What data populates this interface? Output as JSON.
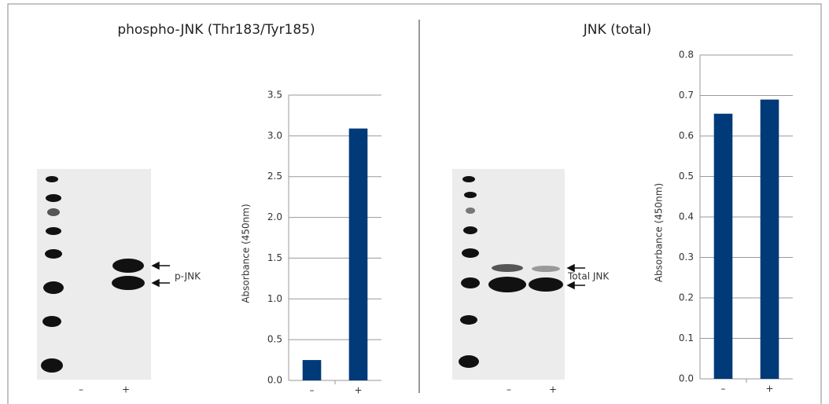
{
  "chart_data": [
    {
      "type": "bar",
      "title": "phospho-JNK (Thr183/Tyr185)",
      "ylabel": "Absorbance (450nm)",
      "categories": [
        "–",
        "+"
      ],
      "values": [
        0.25,
        3.09
      ],
      "color": "#003a78",
      "ylim": [
        0,
        3.5
      ],
      "yticks": [
        {
          "value": 0,
          "label": "0.0"
        },
        0.5,
        {
          "value": 1,
          "label": "1.0"
        },
        1.5,
        {
          "value": 2,
          "label": "2.0"
        },
        2.5,
        {
          "value": 3,
          "label": "3.0"
        },
        3.5
      ],
      "grid": true
    },
    {
      "type": "bar",
      "title": "JNK (total)",
      "ylabel": "Absorbance (450nm)",
      "categories": [
        "–",
        "+"
      ],
      "values": [
        0.655,
        0.69
      ],
      "color": "#003a78",
      "ylim": [
        0,
        0.8
      ],
      "yticks": [
        {
          "value": 0,
          "label": "0.0"
        },
        0.1,
        0.2,
        0.3,
        0.4,
        0.5,
        0.6,
        0.7,
        0.8
      ],
      "grid": true
    }
  ],
  "blots": [
    {
      "label": "p-JNK",
      "lanes": [
        "–",
        "+"
      ]
    },
    {
      "label": "Total JNK",
      "lanes": [
        "–",
        "+"
      ]
    }
  ]
}
